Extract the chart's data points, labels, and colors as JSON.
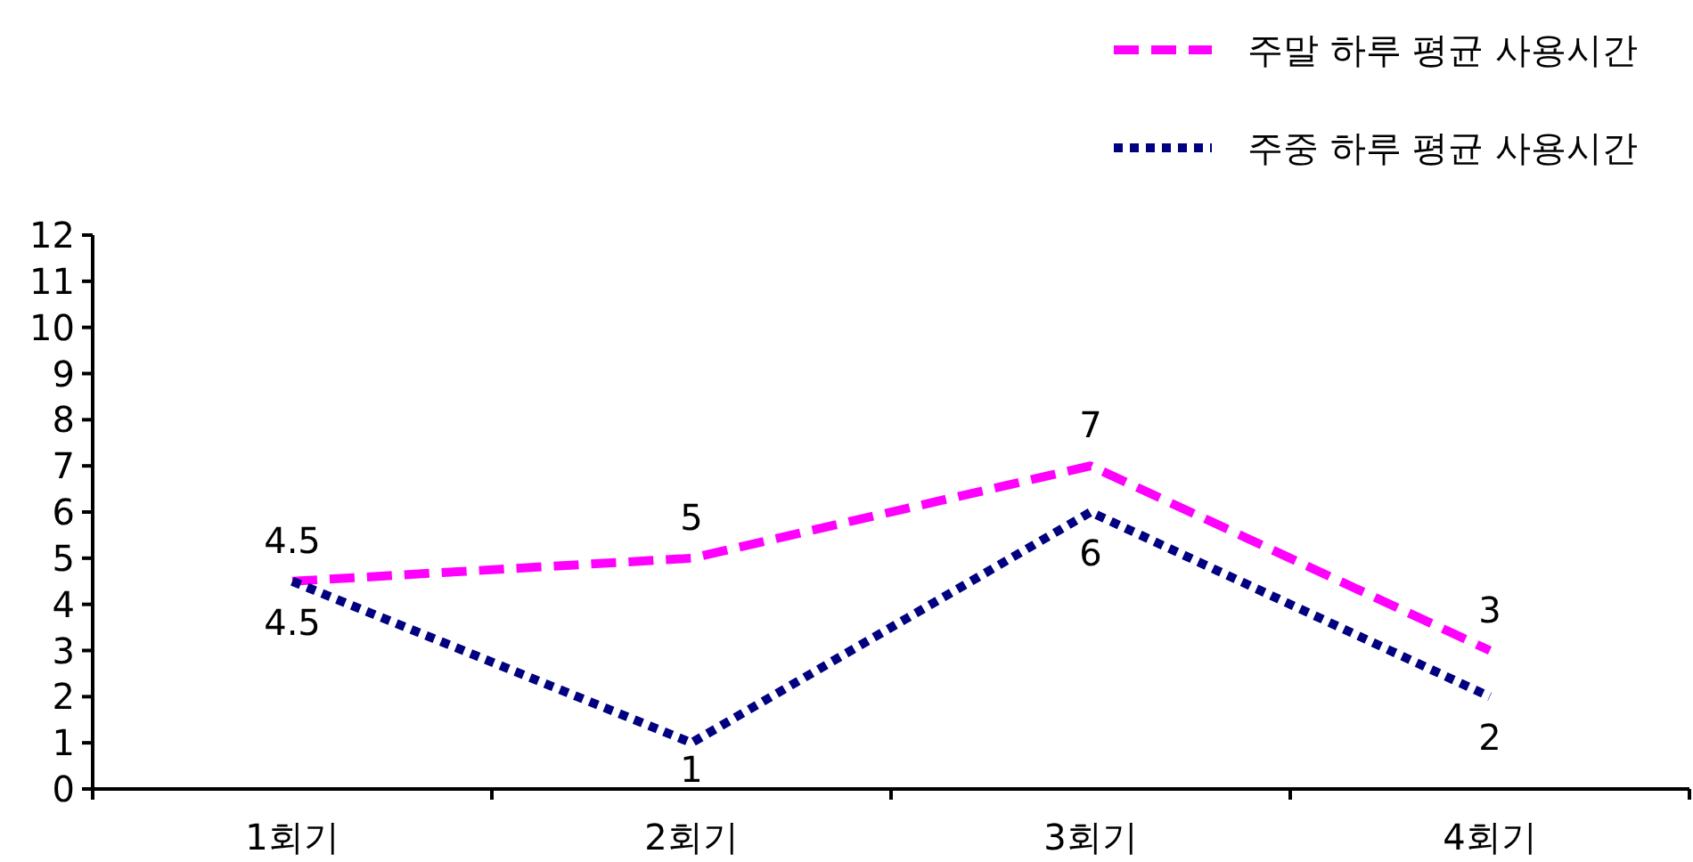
{
  "chart_data": {
    "type": "line",
    "categories": [
      "1회기",
      "2회기",
      "3회기",
      "4회기"
    ],
    "series": [
      {
        "name": "주말 하루 평균 사용시간",
        "color": "#ff00ff",
        "line_style": "dashed",
        "values": [
          4.5,
          5,
          7,
          3
        ]
      },
      {
        "name": "주중 하루 평균 사용시간",
        "color": "#000080",
        "line_style": "dotted",
        "values": [
          4.5,
          1,
          6,
          2
        ]
      }
    ],
    "ylim": [
      0,
      12
    ],
    "yticks": [
      0,
      1,
      2,
      3,
      4,
      5,
      6,
      7,
      8,
      9,
      10,
      11,
      12
    ],
    "grid": false,
    "legend": "top right",
    "data_labels": true
  }
}
